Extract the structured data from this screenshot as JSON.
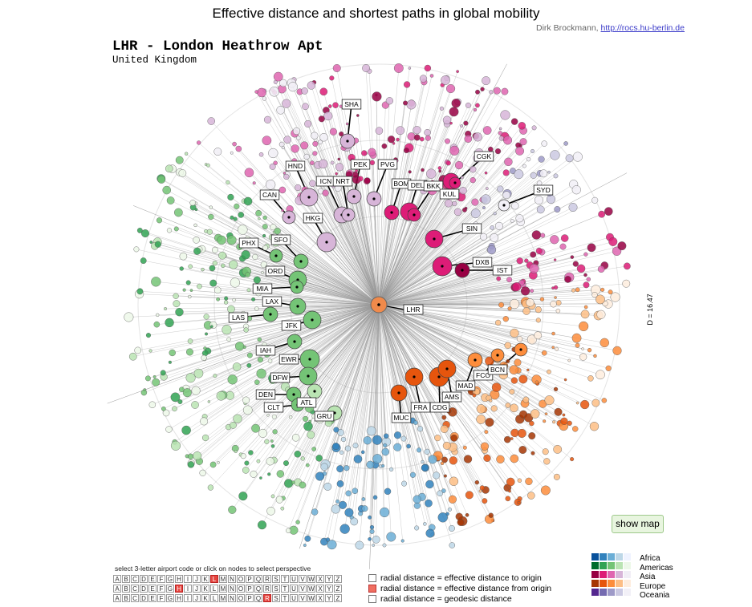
{
  "title": "Effective distance and shortest paths in global mobility",
  "credit": {
    "author": "Dirk Brockmann,",
    "link": "http://rocs.hu-berlin.de"
  },
  "origin": {
    "code_name": "LHR - London Heathrow Apt",
    "country": "United Kingdom",
    "code": "LHR"
  },
  "d_label": "D = 16.47",
  "show_map": "show map",
  "selector": {
    "hint": "select 3-letter airport code or click on nodes to select perspective",
    "alphabet": [
      "A",
      "B",
      "C",
      "D",
      "E",
      "F",
      "G",
      "H",
      "I",
      "J",
      "K",
      "L",
      "M",
      "N",
      "O",
      "P",
      "Q",
      "R",
      "S",
      "T",
      "U",
      "V",
      "W",
      "X",
      "Y",
      "Z"
    ],
    "selected": [
      "L",
      "H",
      "R"
    ]
  },
  "options": [
    {
      "label": "radial distance = effective distance to origin",
      "checked": false
    },
    {
      "label": "radial distance = effective distance from origin",
      "checked": true
    },
    {
      "label": "radial distance = geodesic distance",
      "checked": false
    }
  ],
  "legend": {
    "regions": [
      "Africa",
      "Americas",
      "Asia",
      "Europe",
      "Oceania"
    ],
    "colors": [
      [
        "#08519c",
        "#3182bd",
        "#6baed6",
        "#bdd7e7",
        "#eff3ff"
      ],
      [
        "#006d2c",
        "#31a354",
        "#74c476",
        "#bae4b3",
        "#edf8e9"
      ],
      [
        "#980043",
        "#dd1c77",
        "#df65b0",
        "#d7b5d8",
        "#f1eef6"
      ],
      [
        "#a63603",
        "#e6550d",
        "#fd8d3c",
        "#fdbe85",
        "#feedde"
      ],
      [
        "#54278f",
        "#756bb1",
        "#9e9ac8",
        "#cbc9e2",
        "#f2f0f7"
      ]
    ]
  },
  "colors": {
    "origin": "#f08a4b",
    "edge": "#9a9a9a",
    "path": "#000000"
  },
  "airports": [
    {
      "code": "SHA",
      "region": "Asia",
      "shade": 3
    },
    {
      "code": "PEK",
      "region": "Asia",
      "shade": 3
    },
    {
      "code": "PVG",
      "region": "Asia",
      "shade": 3
    },
    {
      "code": "HND",
      "region": "Asia",
      "shade": 3
    },
    {
      "code": "ICN",
      "region": "Asia",
      "shade": 3
    },
    {
      "code": "NRT",
      "region": "Asia",
      "shade": 3
    },
    {
      "code": "BOM",
      "region": "Asia",
      "shade": 1
    },
    {
      "code": "DEL",
      "region": "Asia",
      "shade": 1
    },
    {
      "code": "BKK",
      "region": "Asia",
      "shade": 1
    },
    {
      "code": "KUL",
      "region": "Asia",
      "shade": 1
    },
    {
      "code": "CGK",
      "region": "Asia",
      "shade": 1
    },
    {
      "code": "SYD",
      "region": "Oceania",
      "shade": 4
    },
    {
      "code": "CAN",
      "region": "Asia",
      "shade": 3
    },
    {
      "code": "HKG",
      "region": "Asia",
      "shade": 3
    },
    {
      "code": "SIN",
      "region": "Asia",
      "shade": 1
    },
    {
      "code": "DXB",
      "region": "Asia",
      "shade": 1
    },
    {
      "code": "IST",
      "region": "Asia",
      "shade": 0
    },
    {
      "code": "PHX",
      "region": "Americas",
      "shade": 2
    },
    {
      "code": "SFO",
      "region": "Americas",
      "shade": 2
    },
    {
      "code": "ORD",
      "region": "Americas",
      "shade": 2
    },
    {
      "code": "MIA",
      "region": "Americas",
      "shade": 2
    },
    {
      "code": "LAX",
      "region": "Americas",
      "shade": 2
    },
    {
      "code": "LAS",
      "region": "Americas",
      "shade": 2
    },
    {
      "code": "JFK",
      "region": "Americas",
      "shade": 2
    },
    {
      "code": "IAH",
      "region": "Americas",
      "shade": 2
    },
    {
      "code": "EWR",
      "region": "Americas",
      "shade": 2
    },
    {
      "code": "DFW",
      "region": "Americas",
      "shade": 2
    },
    {
      "code": "DEN",
      "region": "Americas",
      "shade": 2
    },
    {
      "code": "CLT",
      "region": "Americas",
      "shade": 2
    },
    {
      "code": "ATL",
      "region": "Americas",
      "shade": 3
    },
    {
      "code": "GRU",
      "region": "Americas",
      "shade": 3
    },
    {
      "code": "MUC",
      "region": "Europe",
      "shade": 1
    },
    {
      "code": "FRA",
      "region": "Europe",
      "shade": 1
    },
    {
      "code": "CDG",
      "region": "Europe",
      "shade": 1
    },
    {
      "code": "AMS",
      "region": "Europe",
      "shade": 1
    },
    {
      "code": "MAD",
      "region": "Europe",
      "shade": 2
    },
    {
      "code": "FCO",
      "region": "Europe",
      "shade": 2
    },
    {
      "code": "BCN",
      "region": "Europe",
      "shade": 2
    }
  ]
}
